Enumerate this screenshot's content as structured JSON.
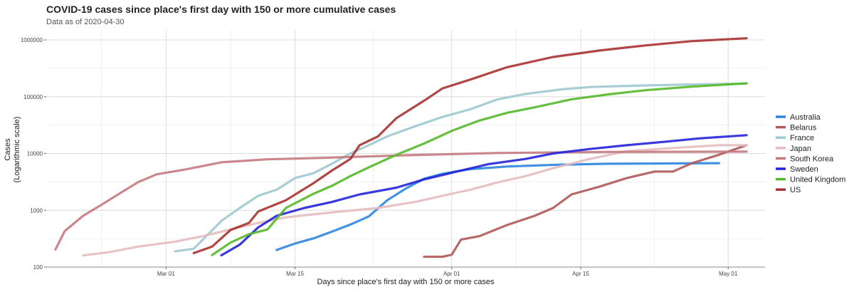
{
  "chart_data": {
    "type": "line",
    "title": "COVID-19 cases since place's first day with 150 or more cumulative cases",
    "subtitle": "Data as of 2020-04-30",
    "xlabel": "Days since place's first day with 150 or more cases",
    "ylabel_line1": "Cases",
    "ylabel_line2": "(Logarithmic scale)",
    "x_type": "date",
    "xlim": [
      "2020-02-17",
      "2020-05-05"
    ],
    "ylim": [
      100,
      1500000
    ],
    "y_scale": "log",
    "x_ticks": [
      {
        "date": "2020-03-01",
        "label": "Mar 01"
      },
      {
        "date": "2020-03-15",
        "label": "Mar 15"
      },
      {
        "date": "2020-04-01",
        "label": "Apr 01"
      },
      {
        "date": "2020-04-15",
        "label": "Apr 15"
      },
      {
        "date": "2020-05-01",
        "label": "May 01"
      }
    ],
    "y_ticks": [
      {
        "value": 100,
        "label": "100"
      },
      {
        "value": 1000,
        "label": "1000"
      },
      {
        "value": 10000,
        "label": "10000"
      },
      {
        "value": 100000,
        "label": "100000"
      },
      {
        "value": 1000000,
        "label": "1000000"
      }
    ],
    "grid": true,
    "legend_position": "right",
    "series": [
      {
        "name": "Australia",
        "color": "#2e86de",
        "points": [
          [
            "2020-03-13",
            200
          ],
          [
            "2020-03-15",
            260
          ],
          [
            "2020-03-17",
            320
          ],
          [
            "2020-03-19",
            420
          ],
          [
            "2020-03-21",
            560
          ],
          [
            "2020-03-23",
            780
          ],
          [
            "2020-03-25",
            1500
          ],
          [
            "2020-03-27",
            2400
          ],
          [
            "2020-03-29",
            3600
          ],
          [
            "2020-03-31",
            4400
          ],
          [
            "2020-04-03",
            5300
          ],
          [
            "2020-04-07",
            5900
          ],
          [
            "2020-04-12",
            6300
          ],
          [
            "2020-04-18",
            6600
          ],
          [
            "2020-04-30",
            6750
          ]
        ]
      },
      {
        "name": "Belarus",
        "color": "#b05a5a",
        "points": [
          [
            "2020-03-29",
            152
          ],
          [
            "2020-03-31",
            152
          ],
          [
            "2020-04-01",
            165
          ],
          [
            "2020-04-02",
            305
          ],
          [
            "2020-04-04",
            350
          ],
          [
            "2020-04-07",
            550
          ],
          [
            "2020-04-10",
            800
          ],
          [
            "2020-04-12",
            1100
          ],
          [
            "2020-04-14",
            1900
          ],
          [
            "2020-04-17",
            2600
          ],
          [
            "2020-04-20",
            3700
          ],
          [
            "2020-04-23",
            4800
          ],
          [
            "2020-04-25",
            4800
          ],
          [
            "2020-04-27",
            6700
          ],
          [
            "2020-04-30",
            9500
          ],
          [
            "2020-05-03",
            14000
          ]
        ]
      },
      {
        "name": "France",
        "color": "#9cc9cf",
        "points": [
          [
            "2020-03-02",
            190
          ],
          [
            "2020-03-04",
            210
          ],
          [
            "2020-03-07",
            650
          ],
          [
            "2020-03-09",
            1100
          ],
          [
            "2020-03-11",
            1800
          ],
          [
            "2020-03-13",
            2300
          ],
          [
            "2020-03-15",
            3700
          ],
          [
            "2020-03-17",
            4500
          ],
          [
            "2020-03-19",
            6600
          ],
          [
            "2020-03-21",
            10000
          ],
          [
            "2020-03-23",
            14000
          ],
          [
            "2020-03-25",
            20000
          ],
          [
            "2020-03-28",
            30000
          ],
          [
            "2020-03-31",
            44000
          ],
          [
            "2020-04-03",
            60000
          ],
          [
            "2020-04-06",
            90000
          ],
          [
            "2020-04-09",
            112000
          ],
          [
            "2020-04-13",
            135000
          ],
          [
            "2020-04-16",
            148000
          ],
          [
            "2020-04-20",
            155000
          ],
          [
            "2020-04-25",
            162000
          ],
          [
            "2020-04-30",
            167000
          ],
          [
            "2020-05-03",
            170000
          ]
        ]
      },
      {
        "name": "Japan",
        "color": "#e6bcc0",
        "points": [
          [
            "2020-02-21",
            160
          ],
          [
            "2020-02-24",
            185
          ],
          [
            "2020-02-27",
            230
          ],
          [
            "2020-03-02",
            280
          ],
          [
            "2020-03-05",
            350
          ],
          [
            "2020-03-08",
            460
          ],
          [
            "2020-03-11",
            600
          ],
          [
            "2020-03-14",
            750
          ],
          [
            "2020-03-17",
            850
          ],
          [
            "2020-03-20",
            950
          ],
          [
            "2020-03-24",
            1100
          ],
          [
            "2020-03-28",
            1400
          ],
          [
            "2020-03-31",
            1800
          ],
          [
            "2020-04-03",
            2300
          ],
          [
            "2020-04-06",
            3100
          ],
          [
            "2020-04-09",
            4000
          ],
          [
            "2020-04-12",
            5500
          ],
          [
            "2020-04-16",
            8000
          ],
          [
            "2020-04-20",
            11000
          ],
          [
            "2020-04-25",
            12500
          ],
          [
            "2020-04-30",
            14000
          ],
          [
            "2020-05-03",
            14000
          ]
        ]
      },
      {
        "name": "South Korea",
        "color": "#c47a80",
        "points": [
          [
            "2020-02-18",
            204
          ],
          [
            "2020-02-19",
            430
          ],
          [
            "2020-02-21",
            800
          ],
          [
            "2020-02-23",
            1250
          ],
          [
            "2020-02-25",
            2000
          ],
          [
            "2020-02-27",
            3150
          ],
          [
            "2020-02-29",
            4300
          ],
          [
            "2020-03-03",
            5200
          ],
          [
            "2020-03-07",
            7000
          ],
          [
            "2020-03-12",
            7900
          ],
          [
            "2020-03-18",
            8400
          ],
          [
            "2020-03-27",
            9300
          ],
          [
            "2020-04-06",
            10200
          ],
          [
            "2020-04-18",
            10650
          ],
          [
            "2020-05-03",
            10800
          ]
        ]
      },
      {
        "name": "Sweden",
        "color": "#2323d9",
        "points": [
          [
            "2020-03-07",
            161
          ],
          [
            "2020-03-09",
            248
          ],
          [
            "2020-03-11",
            500
          ],
          [
            "2020-03-13",
            800
          ],
          [
            "2020-03-16",
            1100
          ],
          [
            "2020-03-19",
            1400
          ],
          [
            "2020-03-22",
            1900
          ],
          [
            "2020-03-26",
            2500
          ],
          [
            "2020-03-29",
            3500
          ],
          [
            "2020-04-02",
            5000
          ],
          [
            "2020-04-05",
            6500
          ],
          [
            "2020-04-09",
            8000
          ],
          [
            "2020-04-12",
            10000
          ],
          [
            "2020-04-16",
            12000
          ],
          [
            "2020-04-20",
            14000
          ],
          [
            "2020-04-24",
            16000
          ],
          [
            "2020-04-28",
            18500
          ],
          [
            "2020-05-03",
            21000
          ]
        ]
      },
      {
        "name": "United Kingdom",
        "color": "#56b82a",
        "points": [
          [
            "2020-03-06",
            163
          ],
          [
            "2020-03-08",
            270
          ],
          [
            "2020-03-10",
            380
          ],
          [
            "2020-03-12",
            460
          ],
          [
            "2020-03-14",
            1100
          ],
          [
            "2020-03-17",
            1950
          ],
          [
            "2020-03-19",
            2700
          ],
          [
            "2020-03-21",
            4000
          ],
          [
            "2020-03-23",
            5700
          ],
          [
            "2020-03-26",
            9500
          ],
          [
            "2020-03-29",
            15000
          ],
          [
            "2020-04-01",
            25000
          ],
          [
            "2020-04-04",
            38000
          ],
          [
            "2020-04-07",
            52000
          ],
          [
            "2020-04-10",
            65000
          ],
          [
            "2020-04-14",
            90000
          ],
          [
            "2020-04-18",
            110000
          ],
          [
            "2020-04-22",
            130000
          ],
          [
            "2020-04-27",
            150000
          ],
          [
            "2020-05-03",
            172000
          ]
        ]
      },
      {
        "name": "US",
        "color": "#a83232",
        "points": [
          [
            "2020-03-04",
            176
          ],
          [
            "2020-03-06",
            230
          ],
          [
            "2020-03-08",
            450
          ],
          [
            "2020-03-10",
            600
          ],
          [
            "2020-03-11",
            950
          ],
          [
            "2020-03-14",
            1500
          ],
          [
            "2020-03-17",
            3000
          ],
          [
            "2020-03-19",
            5000
          ],
          [
            "2020-03-21",
            8000
          ],
          [
            "2020-03-22",
            14000
          ],
          [
            "2020-03-24",
            20000
          ],
          [
            "2020-03-26",
            42000
          ],
          [
            "2020-03-29",
            85000
          ],
          [
            "2020-03-31",
            140000
          ],
          [
            "2020-04-03",
            200000
          ],
          [
            "2020-04-07",
            330000
          ],
          [
            "2020-04-12",
            500000
          ],
          [
            "2020-04-17",
            650000
          ],
          [
            "2020-04-22",
            800000
          ],
          [
            "2020-04-27",
            950000
          ],
          [
            "2020-05-03",
            1070000
          ]
        ]
      }
    ]
  }
}
